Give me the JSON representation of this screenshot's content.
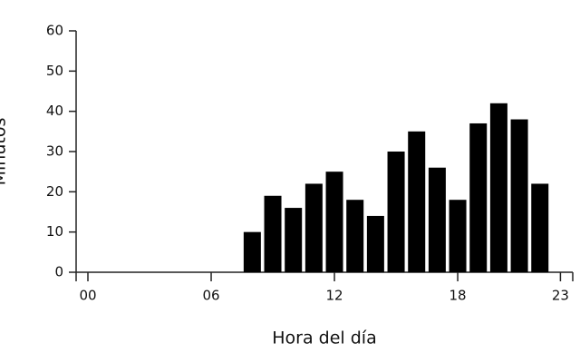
{
  "chart_data": {
    "type": "bar",
    "x_label": "Hora del día",
    "y_label": "Minutos",
    "categories": [
      "00",
      null,
      null,
      null,
      null,
      null,
      "06",
      null,
      null,
      null,
      null,
      null,
      "12",
      null,
      null,
      null,
      null,
      null,
      "18",
      null,
      null,
      null,
      null,
      "23"
    ],
    "values": [
      0,
      0,
      0,
      0,
      0,
      0,
      0,
      0,
      10,
      19,
      16,
      22,
      25,
      18,
      14,
      30,
      35,
      26,
      18,
      37,
      42,
      38,
      22,
      0
    ],
    "color": "#000000",
    "ylim": [
      0,
      60
    ],
    "yticks": [
      0,
      10,
      20,
      30,
      40,
      50,
      60
    ],
    "grid": false
  }
}
